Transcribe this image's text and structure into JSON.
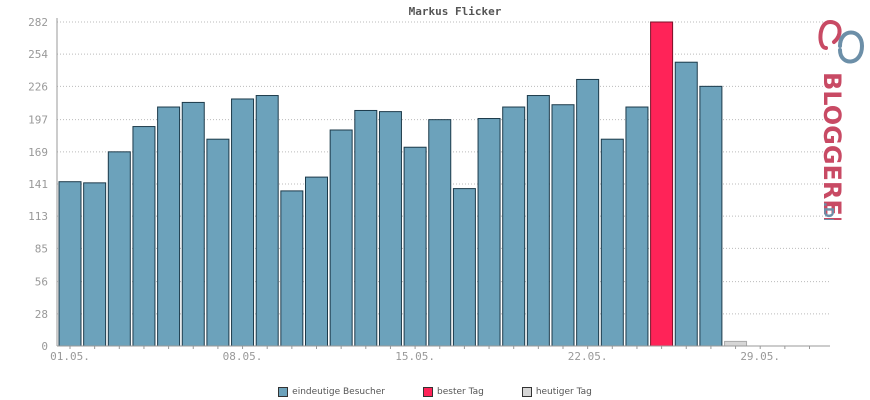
{
  "chart_data": {
    "type": "bar",
    "title": "Markus Flicker",
    "yticks": [
      0,
      28,
      56,
      85,
      113,
      141,
      169,
      197,
      226,
      254,
      282
    ],
    "ylim": [
      0,
      282
    ],
    "xtick_labels": [
      {
        "index": 0,
        "label": "01.05."
      },
      {
        "index": 7,
        "label": "08.05."
      },
      {
        "index": 14,
        "label": "15.05."
      },
      {
        "index": 21,
        "label": "22.05."
      },
      {
        "index": 28,
        "label": "29.05."
      }
    ],
    "values": [
      143,
      142,
      169,
      191,
      208,
      212,
      180,
      215,
      218,
      135,
      147,
      188,
      205,
      204,
      173,
      197,
      137,
      198,
      208,
      218,
      210,
      232,
      180,
      208,
      282,
      247,
      226,
      4,
      0,
      0,
      0
    ],
    "best_index": 24,
    "today_index": 27,
    "grid": true,
    "colors": {
      "visitors": "#6ca2bb",
      "best": "#ff2358",
      "today": "#d6d6d6"
    }
  },
  "legend": [
    {
      "label": "eindeutige Besucher",
      "color": "#6ca2bb"
    },
    {
      "label": "bester Tag",
      "color": "#ff2358"
    },
    {
      "label": "heutiger Tag",
      "color": "#d6d6d6"
    }
  ],
  "logo": {
    "text_main": "BLOGGEREI",
    "text_suffix": ".DE"
  }
}
